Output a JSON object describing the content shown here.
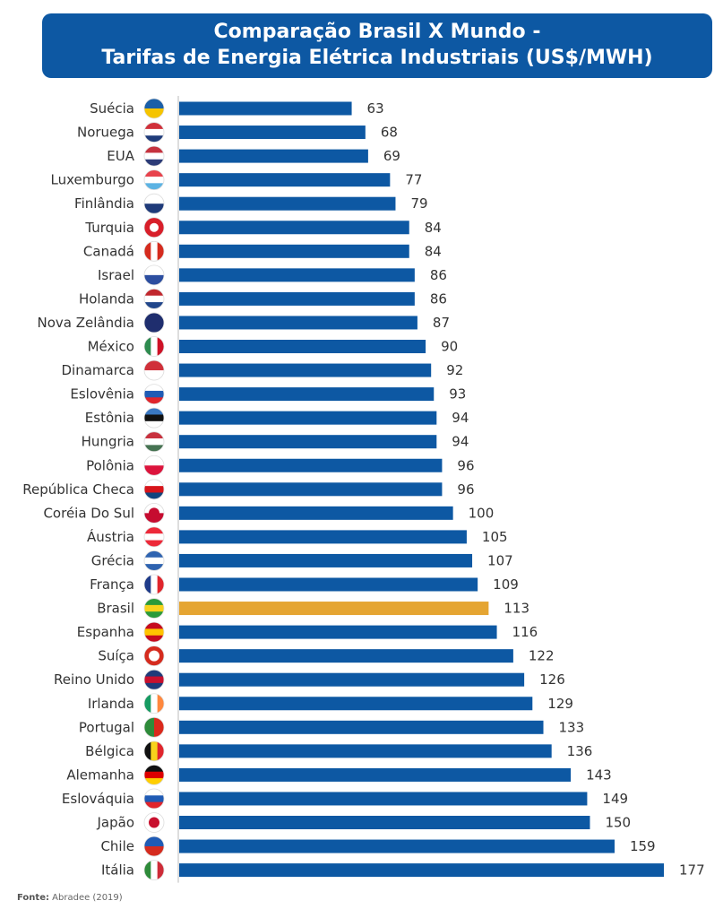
{
  "chart_data": {
    "type": "bar",
    "orientation": "horizontal",
    "title": "Comparação Brasil X Mundo -",
    "subtitle": "Tarifas de Energia Elétrica Industriais (US$/MWH)",
    "xlabel": "",
    "ylabel": "",
    "xlim": [
      0,
      177
    ],
    "grid": false,
    "highlight": "Brasil",
    "colors": {
      "default": "#0d58a3",
      "highlight": "#e5a532"
    },
    "categories": [
      "Suécia",
      "Noruega",
      "EUA",
      "Luxemburgo",
      "Finlândia",
      "Turquia",
      "Canadá",
      "Israel",
      "Holanda",
      "Nova Zelândia",
      "México",
      "Dinamarca",
      "Eslovênia",
      "Estônia",
      "Hungria",
      "Polônia",
      "República Checa",
      "Coréia Do Sul",
      "Áustria",
      "Grécia",
      "França",
      "Brasil",
      "Espanha",
      "Suíça",
      "Reino Unido",
      "Irlanda",
      "Portugal",
      "Bélgica",
      "Alemanha",
      "Eslováquia",
      "Japão",
      "Chile",
      "Itália"
    ],
    "values": [
      63,
      68,
      69,
      77,
      79,
      84,
      84,
      86,
      86,
      87,
      90,
      92,
      93,
      94,
      94,
      96,
      96,
      100,
      105,
      107,
      109,
      113,
      116,
      122,
      126,
      129,
      133,
      136,
      143,
      149,
      150,
      159,
      177
    ],
    "flags": [
      "sweden-flag",
      "norway-flag",
      "usa-flag",
      "luxembourg-flag",
      "finland-flag",
      "turkey-flag",
      "canada-flag",
      "israel-flag",
      "netherlands-flag",
      "new-zealand-flag",
      "mexico-flag",
      "denmark-flag",
      "slovenia-flag",
      "estonia-flag",
      "hungary-flag",
      "poland-flag",
      "czech-flag",
      "south-korea-flag",
      "austria-flag",
      "greece-flag",
      "france-flag",
      "brazil-flag",
      "spain-flag",
      "switzerland-flag",
      "uk-flag",
      "ireland-flag",
      "portugal-flag",
      "belgium-flag",
      "germany-flag",
      "slovakia-flag",
      "japan-flag",
      "chile-flag",
      "italy-flag"
    ]
  },
  "source": {
    "label": "Fonte:",
    "text": "Abradee (2019)"
  }
}
